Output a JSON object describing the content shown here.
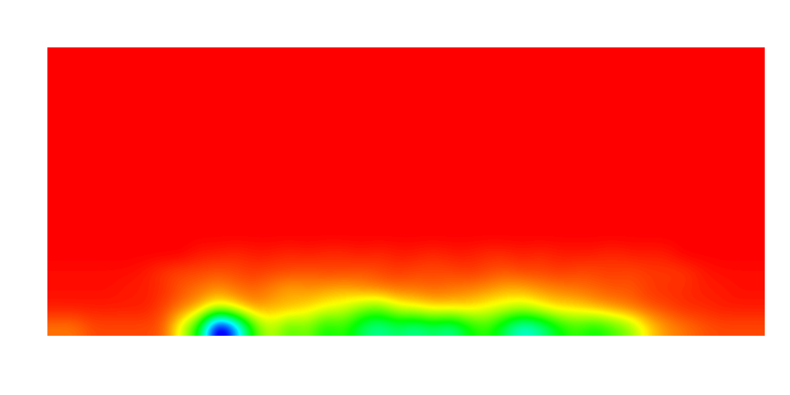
{
  "chart_data": {
    "type": "heatmap",
    "tick_labels": false,
    "color_range": [
      0,
      1
    ],
    "cells": [
      [
        0,
        0,
        0,
        0,
        0,
        0,
        0,
        0,
        0,
        0,
        0,
        0,
        0,
        0,
        0,
        0,
        0,
        0,
        0,
        0,
        0,
        0,
        0,
        0,
        0,
        0,
        0,
        0,
        0,
        0,
        0,
        0,
        0,
        0,
        0,
        0,
        0,
        0,
        0,
        0
      ],
      [
        0,
        0,
        0,
        0,
        0,
        0,
        0,
        0,
        0,
        0,
        0,
        0,
        0,
        0,
        0,
        0,
        0,
        0,
        0,
        0,
        0,
        0,
        0,
        0,
        0,
        0,
        0,
        0,
        0,
        0,
        0,
        0,
        0,
        0,
        0,
        0,
        0,
        0,
        0,
        0
      ],
      [
        0,
        0,
        0,
        0,
        0,
        0,
        0,
        0,
        0,
        0,
        0,
        0,
        0,
        0,
        0,
        0,
        0,
        0,
        0,
        0,
        0,
        0,
        0,
        0,
        0,
        0,
        0,
        0,
        0,
        0,
        0,
        0,
        0,
        0,
        0,
        0,
        0,
        0,
        0,
        0
      ],
      [
        0,
        0,
        0,
        0,
        0,
        0,
        0,
        0,
        0,
        0,
        0,
        0,
        0,
        0,
        0,
        0,
        0,
        0,
        0,
        0,
        0,
        0,
        0,
        0,
        0,
        0,
        0,
        0,
        0,
        0,
        0,
        0,
        0,
        0,
        0,
        0,
        0,
        0,
        0,
        0
      ],
      [
        0,
        0,
        0,
        0,
        0,
        0,
        0,
        0,
        0,
        0,
        0,
        0,
        0,
        0,
        0,
        0,
        0,
        0,
        0,
        0,
        0,
        0,
        0,
        0,
        0,
        0,
        0,
        0,
        0,
        0,
        0,
        0,
        0,
        0,
        0,
        0,
        0,
        0,
        0,
        0
      ],
      [
        0,
        0,
        0,
        0,
        0,
        0,
        0,
        0,
        0,
        0,
        0,
        0,
        0,
        0,
        0,
        0,
        0,
        0,
        0,
        0,
        0,
        0,
        0,
        0,
        0,
        0,
        0,
        0,
        0,
        0,
        0,
        0,
        0,
        0,
        0,
        0,
        0,
        0,
        0,
        0
      ],
      [
        0,
        0,
        0,
        0,
        0,
        0,
        0,
        0,
        0,
        0,
        0,
        0,
        0,
        0,
        0,
        0,
        0,
        0,
        0,
        0,
        0,
        0,
        0,
        0,
        0,
        0,
        0,
        0,
        0,
        0,
        0,
        0,
        0,
        0,
        0,
        0,
        0,
        0,
        0,
        0
      ],
      [
        0,
        0,
        0,
        0,
        0,
        0,
        0,
        0,
        0,
        0,
        0,
        0,
        0,
        0,
        0,
        0,
        0,
        0,
        0,
        0,
        0,
        0,
        0,
        0,
        0,
        0,
        0,
        0,
        0,
        0,
        0,
        0,
        0,
        0,
        0,
        0,
        0,
        0,
        0,
        0
      ],
      [
        0,
        0,
        0,
        0,
        0,
        0,
        0,
        0,
        0,
        0,
        0,
        0,
        0,
        0,
        0,
        0,
        0,
        0,
        0,
        0,
        0,
        0,
        0,
        0,
        0,
        0,
        0,
        0,
        0,
        0,
        0,
        0,
        0,
        0,
        0,
        0,
        0,
        0,
        0,
        0
      ],
      [
        0,
        0,
        0,
        0,
        0,
        0,
        0,
        0,
        0,
        0,
        0,
        0,
        0,
        0,
        0,
        0,
        0,
        0,
        0,
        0,
        0,
        0,
        0,
        0,
        0,
        0,
        0,
        0,
        0,
        0,
        0,
        0,
        0,
        0,
        0,
        0,
        0,
        0,
        0,
        0
      ],
      [
        0,
        0,
        0,
        0,
        0,
        0,
        0,
        0,
        0,
        0,
        0,
        0,
        0,
        0,
        0,
        0,
        0,
        0,
        0,
        0,
        0,
        0,
        0,
        0,
        0,
        0,
        0,
        0,
        0,
        0,
        0,
        0,
        0,
        0,
        0,
        0,
        0,
        0,
        0,
        0
      ],
      [
        0,
        0,
        0,
        0,
        0,
        0,
        0,
        0,
        0.02,
        0.02,
        0.03,
        0.02,
        0.02,
        0.03,
        0.02,
        0.03,
        0.03,
        0.02,
        0.03,
        0.02,
        0.02,
        0.03,
        0.02,
        0.02,
        0.03,
        0.03,
        0.02,
        0.03,
        0.02,
        0.02,
        0.02,
        0.03,
        0.02,
        0.02,
        0.02,
        0,
        0,
        0,
        0,
        0
      ],
      [
        0.01,
        0.01,
        0.01,
        0.01,
        0.01,
        0.02,
        0.04,
        0.05,
        0.05,
        0.06,
        0.05,
        0.04,
        0.05,
        0.05,
        0.06,
        0.05,
        0.05,
        0.06,
        0.05,
        0.04,
        0.05,
        0.05,
        0.05,
        0.04,
        0.05,
        0.06,
        0.05,
        0.05,
        0.04,
        0.05,
        0.05,
        0.04,
        0.05,
        0.04,
        0.04,
        0.04,
        0.02,
        0.01,
        0.01,
        0.01
      ],
      [
        0.01,
        0.01,
        0.01,
        0.01,
        0.02,
        0.02,
        0.03,
        0.06,
        0.08,
        0.1,
        0.08,
        0.07,
        0.09,
        0.12,
        0.1,
        0.11,
        0.12,
        0.1,
        0.09,
        0.08,
        0.08,
        0.07,
        0.08,
        0.09,
        0.1,
        0.12,
        0.12,
        0.1,
        0.09,
        0.08,
        0.07,
        0.06,
        0.06,
        0.04,
        0.03,
        0.03,
        0.02,
        0.02,
        0.01,
        0.01
      ],
      [
        0.02,
        0.02,
        0.02,
        0.02,
        0.02,
        0.02,
        0.05,
        0.08,
        0.12,
        0.2,
        0.15,
        0.1,
        0.12,
        0.12,
        0.15,
        0.18,
        0.2,
        0.25,
        0.28,
        0.2,
        0.18,
        0.15,
        0.15,
        0.15,
        0.18,
        0.2,
        0.22,
        0.18,
        0.15,
        0.15,
        0.12,
        0.1,
        0.08,
        0.06,
        0.05,
        0.03,
        0.03,
        0.02,
        0.02,
        0.02
      ],
      [
        0.08,
        0.08,
        0.05,
        0.05,
        0.05,
        0.05,
        0.06,
        0.2,
        0.35,
        0.8,
        0.6,
        0.3,
        0.2,
        0.3,
        0.25,
        0.35,
        0.3,
        0.4,
        0.45,
        0.4,
        0.45,
        0.4,
        0.45,
        0.35,
        0.3,
        0.4,
        0.5,
        0.45,
        0.35,
        0.3,
        0.35,
        0.3,
        0.25,
        0.15,
        0.1,
        0.08,
        0.06,
        0.05,
        0.05,
        0.05
      ]
    ]
  }
}
